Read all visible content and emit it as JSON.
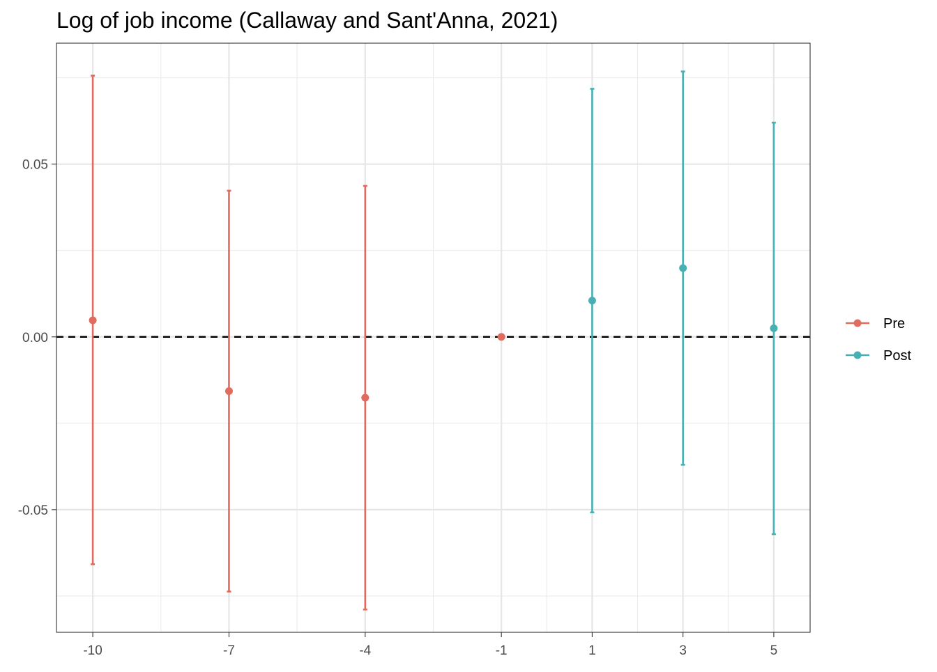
{
  "chart_data": {
    "type": "scatter",
    "title": "Log of job income (Callaway and Sant'Anna, 2021)",
    "xlabel": "",
    "ylabel": "",
    "x_ticks": [
      -10,
      -7,
      -4,
      -1,
      1,
      3,
      5
    ],
    "x_tick_labels": [
      "-10",
      "-7",
      "-4",
      "-1",
      "1",
      "3",
      "5"
    ],
    "y_ticks": [
      -0.05,
      0.0,
      0.05
    ],
    "y_tick_labels": [
      "-0.05",
      "0.00",
      "0.05"
    ],
    "xlim": [
      -10.8,
      5.8
    ],
    "ylim": [
      -0.0855,
      0.085
    ],
    "grid": true,
    "reference_line": {
      "y": 0,
      "style": "dashed"
    },
    "legend_position": "right",
    "series": [
      {
        "name": "Pre",
        "color": "#e06b5f",
        "points": [
          {
            "x": -10,
            "y": 0.0048,
            "lower": -0.0658,
            "upper": 0.0756
          },
          {
            "x": -7,
            "y": -0.0157,
            "lower": -0.0737,
            "upper": 0.0423
          },
          {
            "x": -4,
            "y": -0.0176,
            "lower": -0.0789,
            "upper": 0.0437
          },
          {
            "x": -1,
            "y": 0.0
          }
        ]
      },
      {
        "name": "Post",
        "color": "#47b0b2",
        "points": [
          {
            "x": 1,
            "y": 0.0105,
            "lower": -0.0508,
            "upper": 0.0718
          },
          {
            "x": 3,
            "y": 0.0199,
            "lower": -0.037,
            "upper": 0.0768
          },
          {
            "x": 5,
            "y": 0.0025,
            "lower": -0.0571,
            "upper": 0.062
          }
        ]
      }
    ]
  }
}
